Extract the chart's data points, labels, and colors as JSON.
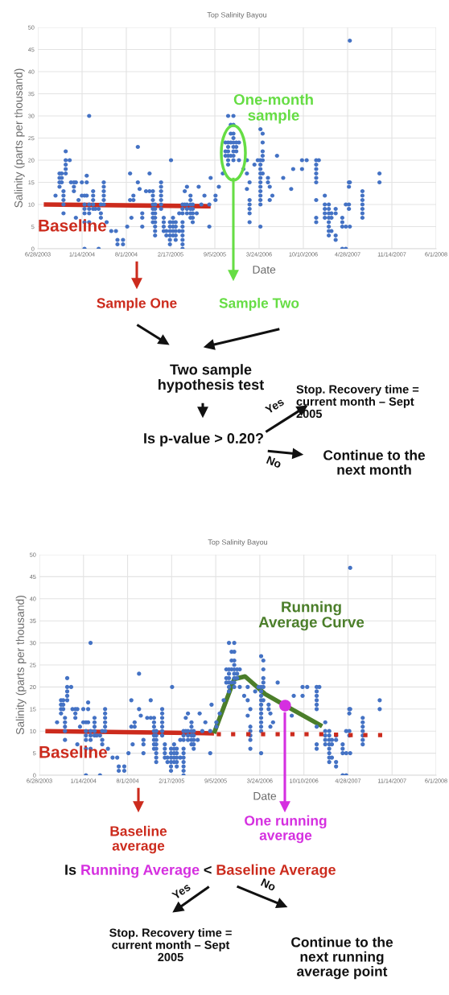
{
  "chart_data": [
    {
      "type": "scatter",
      "title": "Top Salinity Bayou",
      "xlabel": "Date",
      "ylabel": "Salinity (parts per thousand)",
      "xlim": [
        "2003-06-28",
        "2008-06-01"
      ],
      "xticks": [
        {
          "value": "2003-06-28",
          "label": "6/28/2003"
        },
        {
          "value": "2004-01-14",
          "label": "1/14/2004"
        },
        {
          "value": "2004-08-01",
          "label": "8/1/2004"
        },
        {
          "value": "2005-02-17",
          "label": "2/17/2005"
        },
        {
          "value": "2005-09-05",
          "label": "9/5/2005"
        },
        {
          "value": "2006-03-24",
          "label": "3/24/2006"
        },
        {
          "value": "2006-10-10",
          "label": "10/10/2006"
        },
        {
          "value": "2007-04-28",
          "label": "4/28/2007"
        },
        {
          "value": "2007-11-14",
          "label": "11/14/2007"
        },
        {
          "value": "2008-06-01",
          "label": "6/1/2008"
        }
      ],
      "ylim": [
        0,
        50
      ],
      "yticks": [
        0,
        5,
        10,
        15,
        20,
        25,
        30,
        35,
        40,
        45,
        50
      ],
      "grid": true,
      "marker": "circle",
      "annotations": [
        "One-month\nsample",
        "Sample One",
        "Sample Two",
        "Two sample\nhypothesis test",
        "Is p-value > 0.20?",
        "Yes",
        "Stop. Recovery time =\ncurrent month – Sept\n2005",
        "No",
        "Continue to the\nnext month"
      ],
      "series": [
        {
          "color": "#4472c4",
          "x": [
            "2003-09-16",
            "2003-10-04",
            "2003-10-04",
            "2003-10-04",
            "2003-10-04",
            "2003-10-14",
            "2003-10-14",
            "2003-10-14",
            "2003-10-22",
            "2003-10-22",
            "2003-10-22",
            "2003-10-22",
            "2003-10-22",
            "2003-11-01",
            "2003-11-01",
            "2003-11-01",
            "2003-11-01",
            "2003-11-01",
            "2003-11-19",
            "2003-11-25",
            "2003-12-08",
            "2003-12-08",
            "2003-12-08",
            "2003-12-17",
            "2003-12-17",
            "2003-12-29",
            "2004-01-13",
            "2004-01-13",
            "2004-01-25",
            "2004-01-25",
            "2004-01-25",
            "2004-01-25",
            "2004-01-25",
            "2004-01-25",
            "2004-02-04",
            "2004-02-04",
            "2004-02-04",
            "2004-02-15",
            "2004-02-15",
            "2004-02-15",
            "2004-02-15",
            "2004-02-15",
            "2004-03-04",
            "2004-03-04",
            "2004-03-04",
            "2004-03-04",
            "2004-03-04",
            "2004-03-14",
            "2004-03-29",
            "2004-03-29",
            "2004-04-08",
            "2004-04-08",
            "2004-04-08",
            "2004-04-21",
            "2004-04-21",
            "2004-04-21",
            "2004-04-21",
            "2004-04-21",
            "2004-04-21",
            "2004-05-04",
            "2004-05-25",
            "2004-06-15",
            "2004-06-22",
            "2004-06-22",
            "2004-07-17",
            "2004-07-17",
            "2004-08-05",
            "2004-08-18",
            "2004-08-18",
            "2004-08-24",
            "2004-09-02",
            "2004-09-02",
            "2004-09-22",
            "2004-09-22",
            "2004-09-30",
            "2004-10-12",
            "2004-10-12",
            "2004-10-12",
            "2004-10-29",
            "2004-11-14",
            "2004-11-14",
            "2004-11-29",
            "2004-11-29",
            "2004-11-29",
            "2004-11-29",
            "2004-11-29",
            "2004-11-29",
            "2004-11-29",
            "2004-11-29",
            "2004-12-09",
            "2004-12-09",
            "2004-12-09",
            "2004-12-09",
            "2004-12-09",
            "2004-12-09",
            "2004-12-09",
            "2004-12-09",
            "2005-01-05",
            "2005-01-05",
            "2005-01-05",
            "2005-01-05",
            "2005-01-05",
            "2005-01-05",
            "2005-01-05",
            "2005-01-17",
            "2005-01-17",
            "2005-01-17",
            "2005-01-17",
            "2005-01-29",
            "2005-01-29",
            "2005-02-14",
            "2005-02-14",
            "2005-02-14",
            "2005-02-14",
            "2005-02-14",
            "2005-02-14",
            "2005-02-19",
            "2005-02-28",
            "2005-02-28",
            "2005-02-28",
            "2005-02-28",
            "2005-02-28",
            "2005-03-12",
            "2005-03-12",
            "2005-03-12",
            "2005-03-12",
            "2005-03-12",
            "2005-03-28",
            "2005-03-28",
            "2005-04-12",
            "2005-04-12",
            "2005-04-12",
            "2005-04-12",
            "2005-04-12",
            "2005-04-12",
            "2005-04-12",
            "2005-04-12",
            "2005-04-12",
            "2005-04-12",
            "2005-04-22",
            "2005-04-22",
            "2005-05-02",
            "2005-05-02",
            "2005-05-02",
            "2005-05-02",
            "2005-05-18",
            "2005-05-18",
            "2005-05-18",
            "2005-05-18",
            "2005-05-18",
            "2005-05-18",
            "2005-05-28",
            "2005-05-28",
            "2005-05-28",
            "2005-05-28",
            "2005-05-28",
            "2005-06-15",
            "2005-06-24",
            "2005-07-06",
            "2005-07-20",
            "2005-08-11",
            "2005-08-11",
            "2005-08-17",
            "2005-09-08",
            "2005-09-08",
            "2005-09-23",
            "2005-10-11",
            "2005-10-23",
            "2005-10-23",
            "2005-10-23",
            "2005-11-04",
            "2005-11-04",
            "2005-11-04",
            "2005-11-04",
            "2005-11-04",
            "2005-11-04",
            "2005-11-04",
            "2005-11-16",
            "2005-11-16",
            "2005-11-16",
            "2005-11-16",
            "2005-11-28",
            "2005-11-28",
            "2005-11-28",
            "2005-11-28",
            "2005-11-28",
            "2005-11-28",
            "2005-11-28",
            "2005-11-28",
            "2005-11-28",
            "2005-12-11",
            "2005-12-11",
            "2005-12-11",
            "2005-12-23",
            "2005-12-23",
            "2006-01-12",
            "2006-01-28",
            "2006-01-28",
            "2006-01-28",
            "2006-02-09",
            "2006-02-09",
            "2006-02-09",
            "2006-02-09",
            "2006-02-09",
            "2006-02-09",
            "2006-03-03",
            "2006-03-18",
            "2006-03-30",
            "2006-03-30",
            "2006-03-30",
            "2006-03-30",
            "2006-03-30",
            "2006-03-30",
            "2006-03-30",
            "2006-03-30",
            "2006-03-30",
            "2006-03-30",
            "2006-03-30",
            "2006-03-30",
            "2006-03-30",
            "2006-04-09",
            "2006-04-09",
            "2006-04-09",
            "2006-04-09",
            "2006-04-09",
            "2006-04-09",
            "2006-05-03",
            "2006-05-03",
            "2006-05-11",
            "2006-05-11",
            "2006-05-23",
            "2006-06-13",
            "2006-07-11",
            "2006-08-16",
            "2006-08-25",
            "2006-10-04",
            "2006-10-04",
            "2006-10-25",
            "2006-12-07",
            "2006-12-07",
            "2006-12-07",
            "2006-12-07",
            "2006-12-07",
            "2006-12-07",
            "2006-12-07",
            "2006-12-07",
            "2006-12-07",
            "2006-12-19",
            "2007-01-15",
            "2007-01-15",
            "2007-01-15",
            "2007-01-15",
            "2007-01-15",
            "2007-02-02",
            "2007-02-02",
            "2007-02-02",
            "2007-02-02",
            "2007-02-02",
            "2007-02-02",
            "2007-02-02",
            "2007-02-02",
            "2007-02-14",
            "2007-02-14",
            "2007-02-14",
            "2007-03-05",
            "2007-03-05",
            "2007-03-05",
            "2007-03-05",
            "2007-04-04",
            "2007-04-04",
            "2007-04-04",
            "2007-04-04",
            "2007-04-20",
            "2007-04-20",
            "2007-04-20",
            "2007-05-04",
            "2007-05-04",
            "2007-05-04",
            "2007-05-04",
            "2007-05-08",
            "2007-05-08",
            "2007-05-08",
            "2007-07-04",
            "2007-07-04",
            "2007-07-04",
            "2007-07-04",
            "2007-07-04",
            "2007-07-04",
            "2007-07-04",
            "2007-09-19",
            "2007-09-19"
          ],
          "values": [
            12,
            17,
            16,
            15,
            14,
            17,
            16,
            15,
            13,
            12,
            11,
            10,
            8,
            22,
            20,
            19,
            18,
            17,
            20,
            15,
            15,
            14,
            13,
            15,
            7,
            11,
            15,
            12,
            12,
            10,
            9,
            8,
            6,
            0,
            16.5,
            15,
            12,
            30,
            10,
            9,
            8,
            6,
            13,
            12,
            11,
            10,
            9,
            9,
            9,
            0,
            10,
            8,
            7,
            15,
            14,
            13,
            12,
            11,
            10,
            6,
            4,
            4,
            1,
            2,
            1,
            2,
            5,
            17,
            11,
            7,
            12,
            11,
            23,
            15,
            13.5,
            5,
            8,
            7,
            13,
            13,
            17,
            13,
            12,
            11,
            10,
            9,
            8,
            7,
            6,
            10,
            9,
            8,
            7,
            6,
            5,
            4,
            3,
            15,
            14,
            13,
            12,
            11,
            10,
            9,
            7,
            6,
            5,
            4,
            4,
            3,
            6,
            5,
            4,
            3,
            2,
            1,
            20,
            7,
            6,
            5,
            4,
            3,
            6,
            5,
            4,
            3,
            2,
            8,
            4,
            10,
            9,
            8,
            6,
            5,
            4,
            3,
            2,
            1,
            0,
            13,
            10,
            14,
            10,
            9,
            8,
            12,
            11,
            10,
            9,
            8,
            7,
            10,
            9,
            8,
            7,
            6,
            8,
            14,
            10,
            12,
            10,
            5,
            16,
            12,
            11,
            14,
            17,
            21,
            22,
            24,
            24,
            23,
            22,
            21,
            20,
            19,
            30,
            26,
            28,
            24,
            21,
            30,
            28,
            26,
            25,
            24,
            23,
            22,
            21,
            20,
            24,
            23,
            22,
            24,
            20,
            18,
            13.5,
            17,
            20,
            15,
            11,
            10,
            9,
            8,
            6,
            19,
            20,
            27,
            20,
            19,
            18,
            17,
            16,
            15,
            14,
            13,
            12,
            11,
            10,
            5,
            26,
            24,
            22,
            21,
            20,
            17,
            16,
            15,
            14,
            11,
            12,
            21,
            16,
            13.5,
            18,
            18,
            20,
            20,
            20,
            19,
            18,
            17,
            16,
            15,
            11,
            7,
            6,
            20,
            12,
            10,
            9,
            8,
            7,
            10,
            9,
            6,
            5,
            8,
            7,
            4,
            3,
            8,
            7,
            4,
            9,
            8,
            3,
            2,
            0,
            7,
            6,
            5,
            0,
            10,
            5,
            15,
            14,
            10,
            9,
            47,
            15,
            5,
            13,
            12,
            11,
            10,
            9,
            8,
            7,
            17,
            15
          ]
        },
        {
          "type": "line",
          "name": "Baseline",
          "color": "#cc2b1d",
          "marker": "none",
          "x": [
            "2003-07-25",
            "2005-08-17"
          ],
          "values": [
            10,
            9.6
          ]
        }
      ]
    },
    {
      "type": "scatter",
      "title": "Top Salinity Bayou",
      "xlabel": "Date",
      "ylabel": "Salinity (parts per thousand)",
      "xlim": [
        "2003-06-28",
        "2008-06-01"
      ],
      "xticks": [
        {
          "value": "2003-06-28",
          "label": "6/28/2003"
        },
        {
          "value": "2004-01-14",
          "label": "1/14/2004"
        },
        {
          "value": "2004-08-01",
          "label": "8/1/2004"
        },
        {
          "value": "2005-02-17",
          "label": "2/17/2005"
        },
        {
          "value": "2005-09-05",
          "label": "9/5/2005"
        },
        {
          "value": "2006-03-24",
          "label": "3/24/2006"
        },
        {
          "value": "2006-10-10",
          "label": "10/10/2006"
        },
        {
          "value": "2007-04-28",
          "label": "4/28/2007"
        },
        {
          "value": "2007-11-14",
          "label": "11/14/2007"
        },
        {
          "value": "2008-06-01",
          "label": "6/1/2008"
        }
      ],
      "ylim": [
        0,
        50
      ],
      "yticks": [
        0,
        5,
        10,
        15,
        20,
        25,
        30,
        35,
        40,
        45,
        50
      ],
      "grid": true,
      "marker": "circle",
      "annotations": [
        "Baseline\naverage",
        "One running\naverage",
        "Is",
        "Running Average",
        "<",
        "Baseline Average",
        "Yes",
        "No",
        "Stop. Recovery time =\ncurrent month – Sept\n2005",
        "Continue to the\nnext running\naverage point"
      ],
      "series": [
        {
          "color": "#4472c4",
          "x": [
            "2003-09-16",
            "2003-10-04",
            "2003-10-04",
            "2003-10-04",
            "2003-10-04",
            "2003-10-14",
            "2003-10-14",
            "2003-10-14",
            "2003-10-22",
            "2003-10-22",
            "2003-10-22",
            "2003-10-22",
            "2003-10-22",
            "2003-11-01",
            "2003-11-01",
            "2003-11-01",
            "2003-11-01",
            "2003-11-01",
            "2003-11-19",
            "2003-11-25",
            "2003-12-08",
            "2003-12-08",
            "2003-12-08",
            "2003-12-17",
            "2003-12-17",
            "2003-12-29",
            "2004-01-13",
            "2004-01-13",
            "2004-01-25",
            "2004-01-25",
            "2004-01-25",
            "2004-01-25",
            "2004-01-25",
            "2004-01-25",
            "2004-02-04",
            "2004-02-04",
            "2004-02-04",
            "2004-02-15",
            "2004-02-15",
            "2004-02-15",
            "2004-02-15",
            "2004-02-15",
            "2004-03-04",
            "2004-03-04",
            "2004-03-04",
            "2004-03-04",
            "2004-03-04",
            "2004-03-14",
            "2004-03-29",
            "2004-03-29",
            "2004-04-08",
            "2004-04-08",
            "2004-04-08",
            "2004-04-21",
            "2004-04-21",
            "2004-04-21",
            "2004-04-21",
            "2004-04-21",
            "2004-04-21",
            "2004-05-04",
            "2004-05-25",
            "2004-06-15",
            "2004-06-22",
            "2004-06-22",
            "2004-07-17",
            "2004-07-17",
            "2004-08-05",
            "2004-08-18",
            "2004-08-18",
            "2004-08-24",
            "2004-09-02",
            "2004-09-02",
            "2004-09-22",
            "2004-09-22",
            "2004-09-30",
            "2004-10-12",
            "2004-10-12",
            "2004-10-12",
            "2004-10-29",
            "2004-11-14",
            "2004-11-14",
            "2004-11-29",
            "2004-11-29",
            "2004-11-29",
            "2004-11-29",
            "2004-11-29",
            "2004-11-29",
            "2004-11-29",
            "2004-11-29",
            "2004-12-09",
            "2004-12-09",
            "2004-12-09",
            "2004-12-09",
            "2004-12-09",
            "2004-12-09",
            "2004-12-09",
            "2004-12-09",
            "2005-01-05",
            "2005-01-05",
            "2005-01-05",
            "2005-01-05",
            "2005-01-05",
            "2005-01-05",
            "2005-01-05",
            "2005-01-17",
            "2005-01-17",
            "2005-01-17",
            "2005-01-17",
            "2005-01-29",
            "2005-01-29",
            "2005-02-14",
            "2005-02-14",
            "2005-02-14",
            "2005-02-14",
            "2005-02-14",
            "2005-02-14",
            "2005-02-19",
            "2005-02-28",
            "2005-02-28",
            "2005-02-28",
            "2005-02-28",
            "2005-02-28",
            "2005-03-12",
            "2005-03-12",
            "2005-03-12",
            "2005-03-12",
            "2005-03-12",
            "2005-03-28",
            "2005-03-28",
            "2005-04-12",
            "2005-04-12",
            "2005-04-12",
            "2005-04-12",
            "2005-04-12",
            "2005-04-12",
            "2005-04-12",
            "2005-04-12",
            "2005-04-12",
            "2005-04-12",
            "2005-04-22",
            "2005-04-22",
            "2005-05-02",
            "2005-05-02",
            "2005-05-02",
            "2005-05-02",
            "2005-05-18",
            "2005-05-18",
            "2005-05-18",
            "2005-05-18",
            "2005-05-18",
            "2005-05-18",
            "2005-05-28",
            "2005-05-28",
            "2005-05-28",
            "2005-05-28",
            "2005-05-28",
            "2005-06-15",
            "2005-06-24",
            "2005-07-06",
            "2005-07-20",
            "2005-08-11",
            "2005-08-11",
            "2005-08-17",
            "2005-09-08",
            "2005-09-08",
            "2005-09-23",
            "2005-10-11",
            "2005-10-23",
            "2005-10-23",
            "2005-10-23",
            "2005-11-04",
            "2005-11-04",
            "2005-11-04",
            "2005-11-04",
            "2005-11-04",
            "2005-11-04",
            "2005-11-04",
            "2005-11-16",
            "2005-11-16",
            "2005-11-16",
            "2005-11-16",
            "2005-11-28",
            "2005-11-28",
            "2005-11-28",
            "2005-11-28",
            "2005-11-28",
            "2005-11-28",
            "2005-11-28",
            "2005-11-28",
            "2005-11-28",
            "2005-12-11",
            "2005-12-11",
            "2005-12-11",
            "2005-12-23",
            "2005-12-23",
            "2006-01-12",
            "2006-01-28",
            "2006-01-28",
            "2006-01-28",
            "2006-02-09",
            "2006-02-09",
            "2006-02-09",
            "2006-02-09",
            "2006-02-09",
            "2006-02-09",
            "2006-03-03",
            "2006-03-18",
            "2006-03-30",
            "2006-03-30",
            "2006-03-30",
            "2006-03-30",
            "2006-03-30",
            "2006-03-30",
            "2006-03-30",
            "2006-03-30",
            "2006-03-30",
            "2006-03-30",
            "2006-03-30",
            "2006-03-30",
            "2006-03-30",
            "2006-04-09",
            "2006-04-09",
            "2006-04-09",
            "2006-04-09",
            "2006-04-09",
            "2006-04-09",
            "2006-05-03",
            "2006-05-03",
            "2006-05-11",
            "2006-05-11",
            "2006-05-23",
            "2006-06-13",
            "2006-07-11",
            "2006-08-16",
            "2006-08-25",
            "2006-10-04",
            "2006-10-04",
            "2006-10-25",
            "2006-12-07",
            "2006-12-07",
            "2006-12-07",
            "2006-12-07",
            "2006-12-07",
            "2006-12-07",
            "2006-12-07",
            "2006-12-07",
            "2006-12-07",
            "2006-12-19",
            "2007-01-15",
            "2007-01-15",
            "2007-01-15",
            "2007-01-15",
            "2007-01-15",
            "2007-02-02",
            "2007-02-02",
            "2007-02-02",
            "2007-02-02",
            "2007-02-02",
            "2007-02-02",
            "2007-02-02",
            "2007-02-02",
            "2007-02-14",
            "2007-02-14",
            "2007-02-14",
            "2007-03-05",
            "2007-03-05",
            "2007-03-05",
            "2007-03-05",
            "2007-04-04",
            "2007-04-04",
            "2007-04-04",
            "2007-04-04",
            "2007-04-20",
            "2007-04-20",
            "2007-04-20",
            "2007-05-04",
            "2007-05-04",
            "2007-05-04",
            "2007-05-04",
            "2007-05-08",
            "2007-05-08",
            "2007-05-08",
            "2007-07-04",
            "2007-07-04",
            "2007-07-04",
            "2007-07-04",
            "2007-07-04",
            "2007-07-04",
            "2007-07-04",
            "2007-09-19",
            "2007-09-19"
          ],
          "values": [
            12,
            17,
            16,
            15,
            14,
            17,
            16,
            15,
            13,
            12,
            11,
            10,
            8,
            22,
            20,
            19,
            18,
            17,
            20,
            15,
            15,
            14,
            13,
            15,
            7,
            11,
            15,
            12,
            12,
            10,
            9,
            8,
            6,
            0,
            16.5,
            15,
            12,
            30,
            10,
            9,
            8,
            6,
            13,
            12,
            11,
            10,
            9,
            9,
            9,
            0,
            10,
            8,
            7,
            15,
            14,
            13,
            12,
            11,
            10,
            6,
            4,
            4,
            1,
            2,
            1,
            2,
            5,
            17,
            11,
            7,
            12,
            11,
            23,
            15,
            13.5,
            5,
            8,
            7,
            13,
            13,
            17,
            13,
            12,
            11,
            10,
            9,
            8,
            7,
            6,
            10,
            9,
            8,
            7,
            6,
            5,
            4,
            3,
            15,
            14,
            13,
            12,
            11,
            10,
            9,
            7,
            6,
            5,
            4,
            4,
            3,
            6,
            5,
            4,
            3,
            2,
            1,
            20,
            7,
            6,
            5,
            4,
            3,
            6,
            5,
            4,
            3,
            2,
            8,
            4,
            10,
            9,
            8,
            6,
            5,
            4,
            3,
            2,
            1,
            0,
            13,
            10,
            14,
            10,
            9,
            8,
            12,
            11,
            10,
            9,
            8,
            7,
            10,
            9,
            8,
            7,
            6,
            8,
            14,
            10,
            12,
            10,
            5,
            16,
            12,
            11,
            14,
            17,
            21,
            22,
            24,
            24,
            23,
            22,
            21,
            20,
            19,
            30,
            26,
            28,
            24,
            21,
            30,
            28,
            26,
            25,
            24,
            23,
            22,
            21,
            20,
            24,
            23,
            22,
            24,
            20,
            18,
            13.5,
            17,
            20,
            15,
            11,
            10,
            9,
            8,
            6,
            19,
            20,
            27,
            20,
            19,
            18,
            17,
            16,
            15,
            14,
            13,
            12,
            11,
            10,
            5,
            26,
            24,
            22,
            21,
            20,
            17,
            16,
            15,
            14,
            11,
            12,
            21,
            null,
            13.5,
            18,
            18,
            20,
            20,
            20,
            19,
            18,
            17,
            16,
            15,
            11,
            7,
            6,
            20,
            12,
            10,
            9,
            8,
            7,
            10,
            9,
            6,
            5,
            8,
            7,
            4,
            3,
            8,
            7,
            4,
            9,
            8,
            3,
            2,
            0,
            7,
            6,
            5,
            0,
            10,
            5,
            15,
            14,
            10,
            9,
            47,
            15,
            5,
            13,
            12,
            11,
            10,
            9,
            8,
            7,
            17,
            15
          ]
        },
        {
          "type": "line",
          "name": "Baseline",
          "color": "#cc2b1d",
          "marker": "none",
          "x": [
            "2003-07-25",
            "2005-08-28"
          ],
          "values": [
            10,
            9.5
          ]
        },
        {
          "type": "line",
          "name": "Running\nAverage Curve",
          "color": "#4b7e2a",
          "marker": "none",
          "x": [
            "2005-08-28",
            "2005-11-28",
            "2006-01-16",
            "2006-04-17",
            "2006-07-17",
            "2007-01-01"
          ],
          "values": [
            9.5,
            21.8,
            22.4,
            18.4,
            15.8,
            11.1
          ]
        },
        {
          "type": "scatter",
          "color": "#cc2b1d",
          "marker": "square",
          "x": [
            "2005-09-19",
            "2005-11-23",
            "2006-01-31",
            "2006-04-08",
            "2006-06-13",
            "2006-08-19",
            "2006-10-22",
            "2006-12-28",
            "2007-03-05",
            "2007-05-10",
            "2007-07-16",
            "2007-09-21"
          ],
          "values": [
            9.3,
            9.3,
            9.3,
            9.3,
            9.3,
            9.3,
            9.3,
            9.3,
            9.2,
            9.1,
            9.1,
            9.1
          ]
        },
        {
          "type": "scatter",
          "color": "#d52fe0",
          "marker": "circle",
          "x": [
            "2006-07-17"
          ],
          "values": [
            15.8
          ]
        }
      ]
    }
  ]
}
